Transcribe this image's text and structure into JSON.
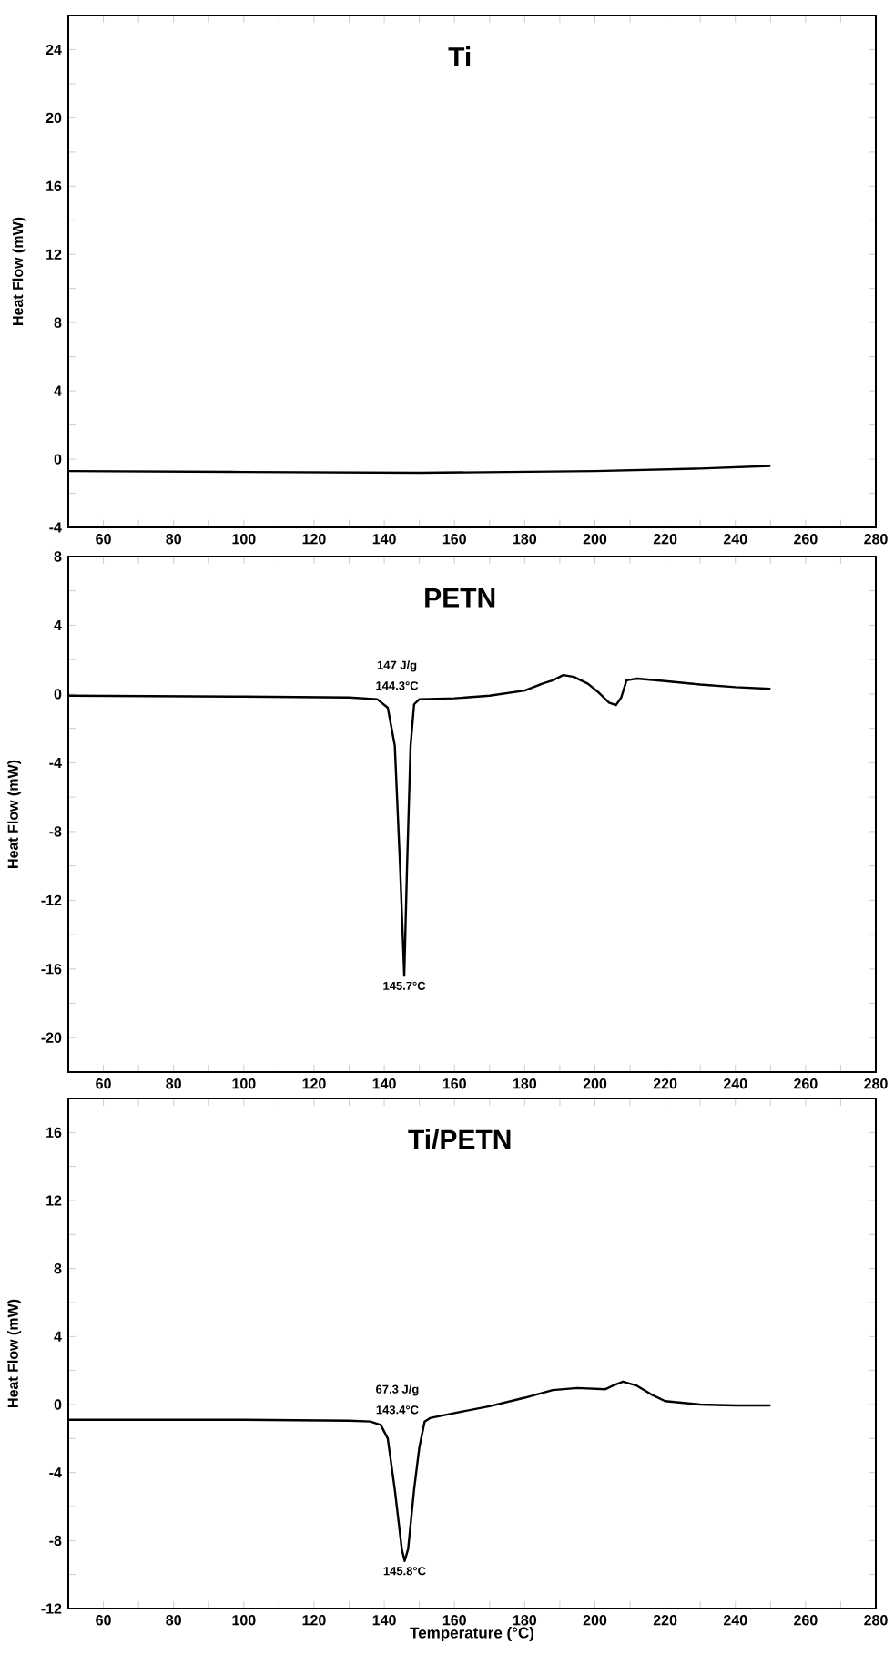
{
  "chart_data": [
    {
      "type": "line",
      "title": "Ti",
      "ylabel": "Heat Flow (mW)",
      "xlim": [
        50,
        280
      ],
      "xticks": [
        60,
        {
          "value": 70,
          "label": null
        },
        80,
        {
          "value": 90,
          "label": null
        },
        100,
        {
          "value": 110,
          "label": null
        },
        120,
        {
          "value": 130,
          "label": null
        },
        140,
        {
          "value": 150,
          "label": null
        },
        160,
        {
          "value": 170,
          "label": null
        },
        180,
        {
          "value": 190,
          "label": null
        },
        200,
        {
          "value": 210,
          "label": null
        },
        220,
        {
          "value": 230,
          "label": null
        },
        240,
        {
          "value": 250,
          "label": null
        },
        260,
        {
          "value": 270,
          "label": null
        },
        280
      ],
      "ylim": [
        -4,
        26
      ],
      "yticks": [
        -4,
        {
          "value": -2,
          "label": null
        },
        0,
        {
          "value": 2,
          "label": null
        },
        4,
        {
          "value": 6,
          "label": null
        },
        8,
        {
          "value": 10,
          "label": null
        },
        12,
        {
          "value": 14,
          "label": null
        },
        16,
        {
          "value": 18,
          "label": null
        },
        20,
        {
          "value": 22,
          "label": null
        },
        24
      ],
      "series": [
        {
          "color": "#000000",
          "x": [
            50,
            100,
            150,
            200,
            230,
            250
          ],
          "values": [
            -0.7,
            -0.75,
            -0.8,
            -0.7,
            -0.55,
            -0.4
          ]
        }
      ]
    },
    {
      "type": "line",
      "title": "PETN",
      "ylabel": "Heat Flow (mW)",
      "xlim": [
        50,
        280
      ],
      "xticks": [
        60,
        {
          "value": 70,
          "label": null
        },
        80,
        {
          "value": 90,
          "label": null
        },
        100,
        {
          "value": 110,
          "label": null
        },
        120,
        {
          "value": 130,
          "label": null
        },
        140,
        {
          "value": 150,
          "label": null
        },
        160,
        {
          "value": 170,
          "label": null
        },
        180,
        {
          "value": 190,
          "label": null
        },
        200,
        {
          "value": 210,
          "label": null
        },
        220,
        {
          "value": 230,
          "label": null
        },
        240,
        {
          "value": 250,
          "label": null
        },
        260,
        {
          "value": 270,
          "label": null
        },
        280
      ],
      "ylim": [
        -22,
        8
      ],
      "yticks": [
        {
          "value": -22,
          "label": null
        },
        -20,
        {
          "value": -18,
          "label": null
        },
        -16,
        {
          "value": -14,
          "label": null
        },
        -12,
        {
          "value": -10,
          "label": null
        },
        -8,
        {
          "value": -6,
          "label": null
        },
        -4,
        {
          "value": -2,
          "label": null
        },
        0,
        {
          "value": 2,
          "label": null
        },
        4,
        {
          "value": 6,
          "label": null
        },
        8
      ],
      "series": [
        {
          "color": "#000000",
          "x": [
            50,
            100,
            130,
            138,
            141,
            143,
            144.5,
            145.7,
            146.5,
            147.5,
            148.5,
            150,
            160,
            170,
            180,
            185,
            188,
            191,
            194,
            198,
            201,
            204,
            206,
            207.5,
            209,
            212,
            220,
            230,
            240,
            250
          ],
          "values": [
            -0.1,
            -0.15,
            -0.2,
            -0.3,
            -0.8,
            -3,
            -10,
            -16.4,
            -10,
            -3,
            -0.6,
            -0.3,
            -0.25,
            -0.1,
            0.2,
            0.6,
            0.8,
            1.1,
            1.0,
            0.6,
            0.1,
            -0.5,
            -0.65,
            -0.2,
            0.8,
            0.9,
            0.75,
            0.55,
            0.4,
            0.3
          ]
        }
      ],
      "annotations": [
        "147 J/g",
        "144.3°C",
        {
          "text": "145.7°C",
          "x": 145.7,
          "y": -16.4
        }
      ]
    },
    {
      "type": "line",
      "title": "Ti/PETN",
      "xlabel": "Temperature (°C)",
      "ylabel": "Heat Flow (mW)",
      "xlim": [
        50,
        280
      ],
      "xticks": [
        60,
        {
          "value": 70,
          "label": null
        },
        80,
        {
          "value": 90,
          "label": null
        },
        100,
        {
          "value": 110,
          "label": null
        },
        120,
        {
          "value": 130,
          "label": null
        },
        140,
        {
          "value": 150,
          "label": null
        },
        160,
        {
          "value": 170,
          "label": null
        },
        180,
        {
          "value": 190,
          "label": null
        },
        200,
        {
          "value": 210,
          "label": null
        },
        220,
        {
          "value": 230,
          "label": null
        },
        240,
        {
          "value": 250,
          "label": null
        },
        260,
        {
          "value": 270,
          "label": null
        },
        280
      ],
      "ylim": [
        -12,
        18
      ],
      "yticks": [
        -12,
        {
          "value": -10,
          "label": null
        },
        -8,
        {
          "value": -6,
          "label": null
        },
        -4,
        {
          "value": -2,
          "label": null
        },
        0,
        {
          "value": 2,
          "label": null
        },
        4,
        {
          "value": 6,
          "label": null
        },
        8,
        {
          "value": 10,
          "label": null
        },
        12,
        {
          "value": 14,
          "label": null
        },
        16,
        {
          "value": 18,
          "label": null
        }
      ],
      "series": [
        {
          "color": "#000000",
          "x": [
            50,
            100,
            130,
            136,
            139,
            141,
            143,
            145,
            145.8,
            146.8,
            148.5,
            150,
            151.5,
            153,
            160,
            170,
            180,
            188,
            195,
            203,
            205,
            208,
            212,
            216,
            220,
            230,
            240,
            250
          ],
          "values": [
            -0.9,
            -0.9,
            -0.95,
            -1.0,
            -1.2,
            -2.0,
            -5,
            -8.5,
            -9.2,
            -8.5,
            -5,
            -2.5,
            -1.0,
            -0.8,
            -0.5,
            -0.1,
            0.4,
            0.85,
            0.97,
            0.9,
            1.1,
            1.35,
            1.1,
            0.6,
            0.2,
            0.0,
            -0.05,
            -0.05
          ]
        }
      ],
      "annotations": [
        "67.3 J/g",
        "143.4°C",
        {
          "text": "145.8°C",
          "x": 145.8,
          "y": -9.2
        }
      ]
    }
  ]
}
